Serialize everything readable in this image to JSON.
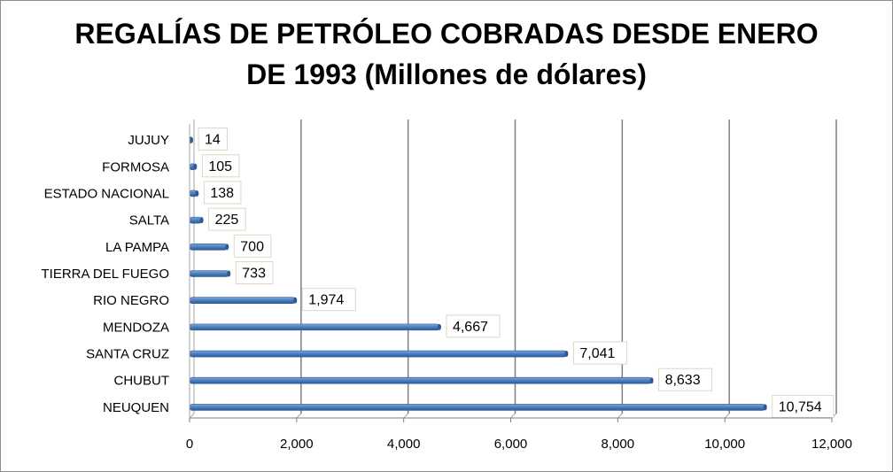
{
  "chart_data": {
    "type": "bar",
    "orientation": "horizontal",
    "title_lines": [
      "REGALÍAS DE PETRÓLEO COBRADAS DESDE ENERO",
      "DE 1993 (Millones de dólares)"
    ],
    "categories": [
      "JUJUY",
      "FORMOSA",
      "ESTADO NACIONAL",
      "SALTA",
      "LA PAMPA",
      "TIERRA DEL FUEGO",
      "RIO NEGRO",
      "MENDOZA",
      "SANTA CRUZ",
      "CHUBUT",
      "NEUQUEN"
    ],
    "values": [
      14,
      105,
      138,
      225,
      700,
      733,
      1974,
      4667,
      7041,
      8633,
      10754
    ],
    "data_labels": [
      "14",
      "105",
      "138",
      "225",
      "700",
      "733",
      "1,974",
      "4,667",
      "7,041",
      "8,633",
      "10,754"
    ],
    "xlim": [
      0,
      12000
    ],
    "xticks": [
      0,
      2000,
      4000,
      6000,
      8000,
      10000,
      12000
    ],
    "xtick_labels": [
      "0",
      "2,000",
      "4,000",
      "6,000",
      "8,000",
      "10,000",
      "12,000"
    ],
    "xlabel": "",
    "ylabel": "",
    "grid": "vertical",
    "legend": "none",
    "bar_color": "#4a7ebb"
  }
}
